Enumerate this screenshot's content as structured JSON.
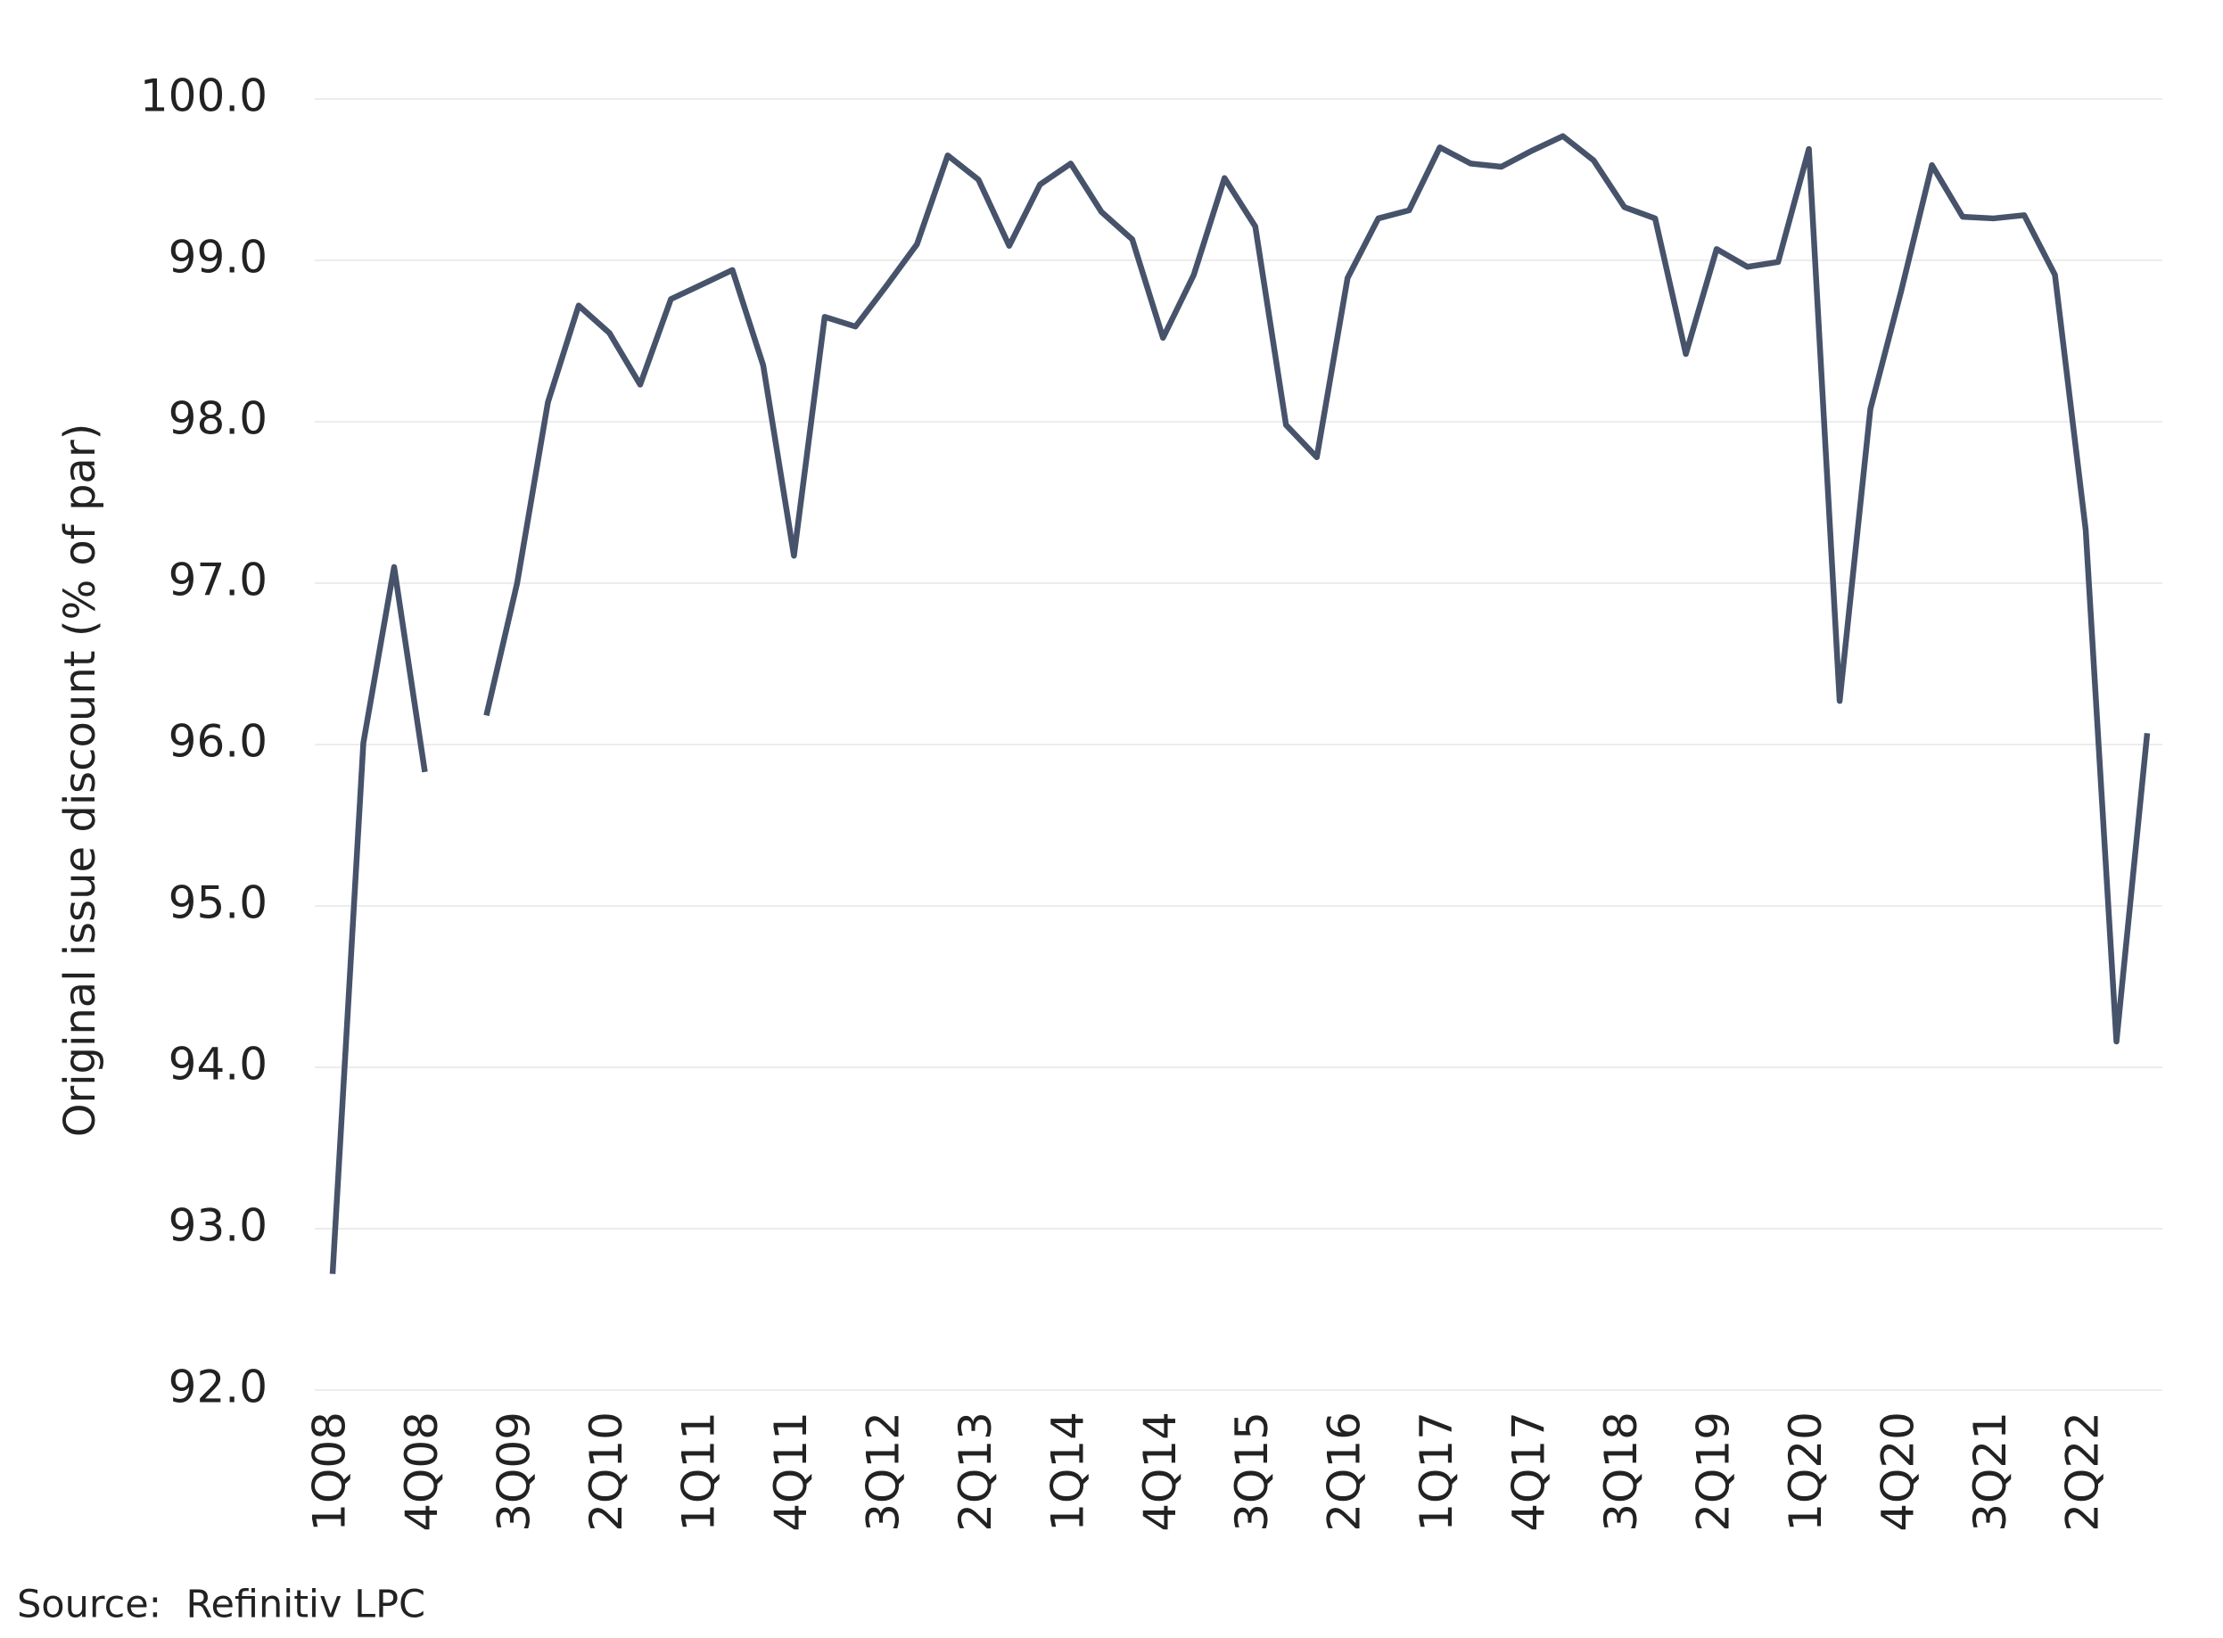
{
  "chart_data": {
    "type": "line",
    "y_label": "Original issue discount (% of par)",
    "source": "Source:  Refinitiv LPC",
    "categories": [
      "1Q08",
      null,
      null,
      "4Q08",
      null,
      null,
      "3Q09",
      null,
      null,
      "2Q10",
      null,
      null,
      "1Q11",
      null,
      null,
      "4Q11",
      null,
      null,
      "3Q12",
      null,
      null,
      "2Q13",
      null,
      null,
      "1Q14",
      null,
      null,
      "4Q14",
      null,
      null,
      "3Q15",
      null,
      null,
      "2Q16",
      null,
      null,
      "1Q17",
      null,
      null,
      "4Q17",
      null,
      null,
      "3Q18",
      null,
      null,
      "2Q19",
      null,
      null,
      "1Q20",
      null,
      null,
      "4Q20",
      null,
      null,
      "3Q21",
      null,
      null,
      "2Q22",
      null,
      null
    ],
    "series": [
      {
        "color": "#46536a",
        "values": [
          92.72,
          96.01,
          97.1,
          95.83,
          null,
          96.18,
          97.0,
          98.12,
          98.72,
          98.55,
          98.23,
          98.76,
          98.85,
          98.94,
          98.35,
          97.17,
          98.65,
          98.59,
          98.84,
          99.1,
          99.65,
          99.5,
          99.09,
          99.47,
          99.6,
          99.3,
          99.13,
          98.52,
          98.91,
          99.51,
          99.21,
          97.98,
          97.78,
          98.89,
          99.26,
          99.31,
          99.7,
          99.6,
          99.58,
          99.68,
          99.77,
          99.62,
          99.33,
          99.26,
          98.42,
          99.07,
          98.96,
          98.99,
          99.69,
          96.27,
          98.08,
          98.81,
          99.59,
          99.27,
          99.26,
          99.28,
          98.91,
          97.33,
          94.16,
          96.07
        ]
      }
    ],
    "ylim": [
      92,
      100
    ],
    "yticks": [
      {
        "value": 92,
        "label": "92.0"
      },
      {
        "value": 93,
        "label": "93.0"
      },
      {
        "value": 94,
        "label": "94.0"
      },
      {
        "value": 95,
        "label": "95.0"
      },
      {
        "value": 96,
        "label": "96.0"
      },
      {
        "value": 97,
        "label": "97.0"
      },
      {
        "value": 98,
        "label": "98.0"
      },
      {
        "value": 99,
        "label": "99.0"
      },
      {
        "value": 100,
        "label": "100.0"
      }
    ],
    "grid": true
  }
}
